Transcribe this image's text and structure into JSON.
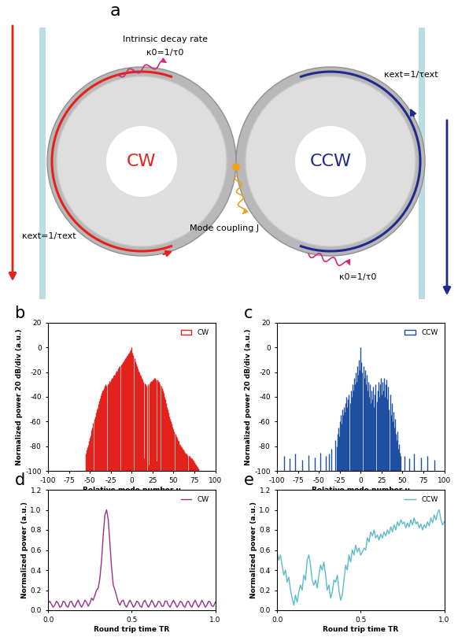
{
  "diagram": {
    "label": "a",
    "rings": [
      {
        "label": "CW",
        "color": "#e3221c"
      },
      {
        "label": "CCW",
        "color": "#1f2a8c"
      }
    ],
    "intrinsic": "Intrinsic decay rate",
    "kappa0": "κ0=1/τ0",
    "kext": "κext=1/τext",
    "coupling": "Mode coupling J"
  },
  "chart_data": [
    {
      "type": "bar",
      "title": "b",
      "x": [
        -55,
        -54,
        -53,
        -52,
        -51,
        -50,
        -49,
        -48,
        -47,
        -46,
        -45,
        -44,
        -43,
        -42,
        -41,
        -40,
        -39,
        -38,
        -37,
        -36,
        -35,
        -34,
        -33,
        -32,
        -31,
        -30,
        -29,
        -28,
        -27,
        -26,
        -25,
        -24,
        -23,
        -22,
        -21,
        -20,
        -19,
        -18,
        -17,
        -16,
        -15,
        -14,
        -13,
        -12,
        -11,
        -10,
        -9,
        -8,
        -7,
        -6,
        -5,
        -4,
        -3,
        -2,
        -1,
        0,
        1,
        2,
        3,
        4,
        5,
        6,
        7,
        8,
        9,
        10,
        11,
        12,
        13,
        14,
        15,
        16,
        17,
        18,
        19,
        20,
        21,
        22,
        23,
        24,
        25,
        26,
        27,
        28,
        29,
        30,
        31,
        32,
        33,
        34,
        35,
        36,
        37,
        38,
        39,
        40,
        41,
        42,
        43,
        44,
        45,
        46,
        47,
        48,
        49,
        50,
        51,
        52,
        53,
        54,
        55,
        56,
        57,
        58,
        59,
        60,
        61,
        62,
        63,
        64,
        65,
        66,
        67,
        68,
        69,
        70,
        71,
        72,
        73,
        74,
        75,
        76,
        77,
        78,
        79,
        80
      ],
      "series": [
        {
          "name": "CW",
          "color": "#e3221c",
          "values": [
            -86,
            -83,
            -81,
            -79,
            -76,
            -73,
            -71,
            -67,
            -65,
            -61,
            -58,
            -56,
            -53,
            -50,
            -49,
            -46,
            -43,
            -41,
            -39,
            -37,
            -35,
            -34,
            -33,
            -31,
            -30,
            -31,
            -30,
            -29,
            -27,
            -28,
            -26,
            -25,
            -25,
            -23,
            -22,
            -22,
            -20,
            -19,
            -19,
            -17,
            -16,
            -15,
            -14,
            -13,
            -12,
            -11,
            -10,
            -9,
            -8,
            -7,
            -6,
            -5,
            -4,
            -3,
            -2,
            0,
            -4,
            -6,
            -9,
            -11,
            -13,
            -15,
            -17,
            -19,
            -20,
            -22,
            -23,
            -25,
            -26,
            -28,
            -90,
            -29,
            -30,
            -31,
            -30,
            -95,
            -29,
            -28,
            -27,
            -27,
            -26,
            -26,
            -25,
            -25,
            -26,
            -92,
            -26,
            -27,
            -28,
            -30,
            -31,
            -33,
            -35,
            -37,
            -40,
            -42,
            -45,
            -48,
            -50,
            -53,
            -56,
            -58,
            -60,
            -62,
            -64,
            -66,
            -68,
            -70,
            -72,
            -73,
            -75,
            -76,
            -78,
            -79,
            -80,
            -81,
            -82,
            -83,
            -84,
            -85,
            -86,
            -86,
            -87,
            -88,
            -88,
            -89,
            -90,
            -90,
            -91,
            -92,
            -93,
            -94,
            -95,
            -96,
            -97,
            -98
          ]
        }
      ],
      "xlim": [
        -100,
        100
      ],
      "xticks": [
        -100,
        -75,
        -50,
        -25,
        0,
        25,
        50,
        75,
        100
      ],
      "ylim": [
        -100,
        20
      ],
      "yticks": [
        -100,
        -80,
        -60,
        -40,
        -20,
        0,
        20
      ],
      "x_label": "Relative mode number μ",
      "y_label": "Normalized power 20 dB/div (a.u.)",
      "legend": "upper right"
    },
    {
      "type": "bar",
      "title": "c",
      "x": [
        -92,
        -85,
        -78,
        -70,
        -62,
        -55,
        -48,
        -42,
        -38,
        -35,
        -30,
        -29,
        -28,
        -27,
        -26,
        -25,
        -24,
        -23,
        -22,
        -21,
        -20,
        -19,
        -18,
        -17,
        -16,
        -15,
        -14,
        -13,
        -12,
        -11,
        -10,
        -9,
        -8,
        -7,
        -6,
        -5,
        -4,
        -3,
        -2,
        -1,
        0,
        1,
        2,
        3,
        4,
        5,
        6,
        7,
        8,
        9,
        10,
        11,
        12,
        13,
        14,
        15,
        16,
        17,
        18,
        19,
        20,
        21,
        22,
        23,
        24,
        25,
        26,
        27,
        28,
        29,
        30,
        31,
        32,
        33,
        34,
        35,
        36,
        37,
        38,
        39,
        40,
        41,
        42,
        43,
        44,
        45,
        46,
        47,
        48,
        52,
        58,
        64,
        72,
        80,
        88
      ],
      "series": [
        {
          "name": "CCW",
          "color": "#1f4fa0",
          "values": [
            -88,
            -90,
            -86,
            -91,
            -87,
            -89,
            -85,
            -88,
            -86,
            -82,
            -75,
            -80,
            -70,
            -65,
            -72,
            -60,
            -55,
            -62,
            -50,
            -55,
            -48,
            -52,
            -45,
            -40,
            -48,
            -42,
            -38,
            -45,
            -35,
            -40,
            -30,
            -35,
            -25,
            -30,
            -20,
            -28,
            -15,
            -22,
            -10,
            -18,
            0,
            -12,
            -20,
            -15,
            -25,
            -18,
            -30,
            -22,
            -35,
            -28,
            -40,
            -30,
            -45,
            -35,
            -42,
            -32,
            -48,
            -38,
            -30,
            -44,
            -35,
            -28,
            -40,
            -30,
            -25,
            -38,
            -28,
            -35,
            -25,
            -40,
            -30,
            -26,
            -42,
            -32,
            -50,
            -38,
            -55,
            -45,
            -60,
            -52,
            -65,
            -58,
            -70,
            -75,
            -68,
            -82,
            -78,
            -85,
            -88,
            -88,
            -90,
            -86,
            -89,
            -88,
            -91
          ]
        }
      ],
      "xlim": [
        -100,
        100
      ],
      "xticks": [
        -100,
        -75,
        -50,
        -25,
        0,
        25,
        50,
        75,
        100
      ],
      "ylim": [
        -100,
        20
      ],
      "yticks": [
        -100,
        -80,
        -60,
        -40,
        -20,
        0,
        20
      ],
      "x_label": "Relative mode number μ",
      "y_label": "Normalized power 20 dB/div (a.u.)",
      "legend": "upper right"
    },
    {
      "type": "line",
      "title": "d",
      "x": [
        0.0,
        0.01,
        0.02,
        0.03,
        0.04,
        0.05,
        0.06,
        0.07,
        0.08,
        0.09,
        0.1,
        0.11,
        0.12,
        0.13,
        0.14,
        0.15,
        0.16,
        0.17,
        0.18,
        0.19,
        0.2,
        0.21,
        0.22,
        0.23,
        0.24,
        0.25,
        0.26,
        0.27,
        0.28,
        0.29,
        0.3,
        0.31,
        0.32,
        0.33,
        0.34,
        0.35,
        0.36,
        0.37,
        0.38,
        0.39,
        0.4,
        0.41,
        0.42,
        0.43,
        0.44,
        0.45,
        0.46,
        0.47,
        0.48,
        0.49,
        0.5,
        0.51,
        0.52,
        0.53,
        0.54,
        0.55,
        0.56,
        0.57,
        0.58,
        0.59,
        0.6,
        0.61,
        0.62,
        0.63,
        0.64,
        0.65,
        0.66,
        0.67,
        0.68,
        0.69,
        0.7,
        0.71,
        0.72,
        0.73,
        0.74,
        0.75,
        0.76,
        0.77,
        0.78,
        0.79,
        0.8,
        0.81,
        0.82,
        0.83,
        0.84,
        0.85,
        0.86,
        0.87,
        0.88,
        0.89,
        0.9,
        0.91,
        0.92,
        0.93,
        0.94,
        0.95,
        0.96,
        0.97,
        0.98,
        0.99,
        1.0
      ],
      "series": [
        {
          "name": "CW",
          "color": "#9b2f8e",
          "values": [
            0.07,
            0.09,
            0.06,
            0.03,
            0.05,
            0.09,
            0.07,
            0.03,
            0.04,
            0.09,
            0.08,
            0.04,
            0.03,
            0.08,
            0.09,
            0.05,
            0.03,
            0.07,
            0.1,
            0.06,
            0.03,
            0.06,
            0.1,
            0.08,
            0.04,
            0.07,
            0.12,
            0.1,
            0.15,
            0.2,
            0.22,
            0.32,
            0.5,
            0.75,
            0.95,
            1.0,
            0.9,
            0.66,
            0.42,
            0.25,
            0.2,
            0.14,
            0.08,
            0.05,
            0.09,
            0.1,
            0.05,
            0.03,
            0.07,
            0.1,
            0.07,
            0.03,
            0.05,
            0.09,
            0.08,
            0.04,
            0.03,
            0.08,
            0.1,
            0.06,
            0.03,
            0.06,
            0.1,
            0.07,
            0.03,
            0.05,
            0.09,
            0.08,
            0.04,
            0.04,
            0.09,
            0.09,
            0.05,
            0.03,
            0.07,
            0.1,
            0.07,
            0.03,
            0.05,
            0.09,
            0.08,
            0.04,
            0.03,
            0.08,
            0.09,
            0.05,
            0.03,
            0.07,
            0.1,
            0.06,
            0.03,
            0.06,
            0.1,
            0.07,
            0.03,
            0.05,
            0.09,
            0.08,
            0.04,
            0.04,
            0.08
          ]
        }
      ],
      "xlim": [
        0.0,
        1.0
      ],
      "xticks": [
        0.0,
        0.5,
        1.0
      ],
      "ylim": [
        0.0,
        1.2
      ],
      "yticks": [
        0.0,
        0.2,
        0.4,
        0.6,
        0.8,
        1.0,
        1.2
      ],
      "x_label": "Round trip time TR",
      "y_label": "Normalized power (a.u.)",
      "legend": "upper right"
    },
    {
      "type": "line",
      "title": "e",
      "x": [
        0.0,
        0.01,
        0.02,
        0.03,
        0.04,
        0.05,
        0.06,
        0.07,
        0.08,
        0.09,
        0.1,
        0.11,
        0.12,
        0.13,
        0.14,
        0.15,
        0.16,
        0.17,
        0.18,
        0.19,
        0.2,
        0.21,
        0.22,
        0.23,
        0.24,
        0.25,
        0.26,
        0.27,
        0.28,
        0.29,
        0.3,
        0.31,
        0.32,
        0.33,
        0.34,
        0.35,
        0.36,
        0.37,
        0.38,
        0.39,
        0.4,
        0.41,
        0.42,
        0.43,
        0.44,
        0.45,
        0.46,
        0.47,
        0.48,
        0.49,
        0.5,
        0.51,
        0.52,
        0.53,
        0.54,
        0.55,
        0.56,
        0.57,
        0.58,
        0.59,
        0.6,
        0.61,
        0.62,
        0.63,
        0.64,
        0.65,
        0.66,
        0.67,
        0.68,
        0.69,
        0.7,
        0.71,
        0.72,
        0.73,
        0.74,
        0.75,
        0.76,
        0.77,
        0.78,
        0.79,
        0.8,
        0.81,
        0.82,
        0.83,
        0.84,
        0.85,
        0.86,
        0.87,
        0.88,
        0.89,
        0.9,
        0.91,
        0.92,
        0.93,
        0.94,
        0.95,
        0.96,
        0.97,
        0.98,
        0.99,
        1.0
      ],
      "series": [
        {
          "name": "CCW",
          "color": "#5bbcc8",
          "values": [
            0.58,
            0.5,
            0.55,
            0.45,
            0.35,
            0.4,
            0.28,
            0.33,
            0.2,
            0.12,
            0.05,
            0.15,
            0.08,
            0.18,
            0.25,
            0.2,
            0.35,
            0.3,
            0.5,
            0.55,
            0.45,
            0.3,
            0.25,
            0.3,
            0.22,
            0.35,
            0.45,
            0.4,
            0.48,
            0.35,
            0.2,
            0.25,
            0.12,
            0.18,
            0.3,
            0.28,
            0.35,
            0.2,
            0.1,
            0.15,
            0.3,
            0.45,
            0.4,
            0.55,
            0.48,
            0.6,
            0.55,
            0.65,
            0.58,
            0.62,
            0.55,
            0.58,
            0.62,
            0.6,
            0.72,
            0.68,
            0.78,
            0.74,
            0.8,
            0.72,
            0.75,
            0.7,
            0.76,
            0.72,
            0.78,
            0.74,
            0.8,
            0.76,
            0.83,
            0.78,
            0.85,
            0.8,
            0.88,
            0.84,
            0.9,
            0.86,
            0.88,
            0.82,
            0.87,
            0.83,
            0.9,
            0.85,
            0.92,
            0.86,
            0.88,
            0.82,
            0.86,
            0.8,
            0.85,
            0.82,
            0.88,
            0.84,
            0.92,
            0.87,
            0.95,
            0.9,
            0.97,
            1.0,
            0.9,
            0.85,
            0.88
          ]
        }
      ],
      "xlim": [
        0.0,
        1.0
      ],
      "xticks": [
        0.0,
        0.5,
        1.0
      ],
      "ylim": [
        0.0,
        1.2
      ],
      "yticks": [
        0.0,
        0.2,
        0.4,
        0.6,
        0.8,
        1.0,
        1.2
      ],
      "x_label": "Round trip time TR",
      "y_label": "Normalized power (a.u.)",
      "legend": "upper right"
    }
  ]
}
